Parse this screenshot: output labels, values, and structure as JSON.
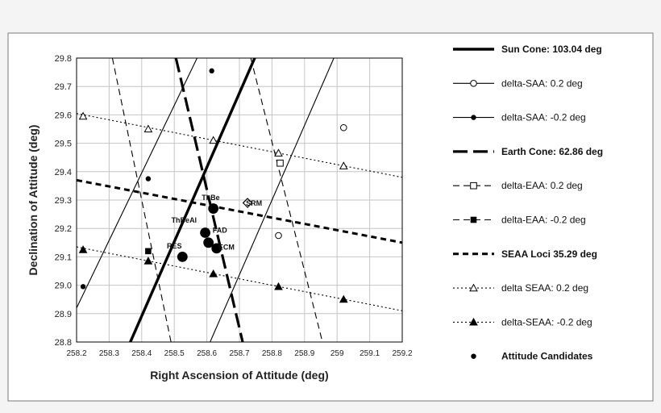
{
  "chart_data": {
    "type": "line",
    "xlabel": "Right Ascension of Attitude (deg)",
    "ylabel": "Declination of Attitude (deg)",
    "xlim": [
      258.2,
      259.2
    ],
    "ylim": [
      28.8,
      29.8
    ],
    "xticks": [
      "258.2",
      "258.3",
      "258.4",
      "258.5",
      "258.6",
      "258.7",
      "258.8",
      "258.9",
      "259",
      "259.1",
      "259.2"
    ],
    "yticks": [
      "28.8",
      "28.9",
      "29.0",
      "29.1",
      "29.2",
      "29.3",
      "29.4",
      "29.5",
      "29.6",
      "29.7",
      "29.8"
    ],
    "grid": true,
    "legend_position": "right",
    "series": [
      {
        "name": "Sun Cone: 103.04 deg",
        "style": "thick-solid",
        "marker": "none",
        "bold": true,
        "x": [
          258.365,
          258.747
        ],
        "y": [
          28.8,
          29.8
        ],
        "marker_x": [],
        "marker_y": []
      },
      {
        "name": "delta-SAA: 0.2 deg",
        "style": "thin-solid",
        "marker": "open-circle",
        "bold": false,
        "x": [
          258.61,
          258.99
        ],
        "y": [
          28.8,
          29.8
        ],
        "marker_x": [
          258.82,
          259.02
        ],
        "marker_y": [
          29.175,
          29.555
        ]
      },
      {
        "name": "delta-SAA: -0.2 deg",
        "style": "thin-solid",
        "marker": "filled-circle",
        "bold": false,
        "x": [
          258.2,
          258.57
        ],
        "y": [
          28.92,
          29.8
        ],
        "marker_x": [
          258.22,
          258.42,
          258.615
        ],
        "marker_y": [
          28.995,
          29.375,
          29.755
        ]
      },
      {
        "name": "Earth Cone: 62.86 deg",
        "style": "long-dash",
        "marker": "none",
        "bold": true,
        "x": [
          258.505,
          258.71
        ],
        "y": [
          29.8,
          28.8
        ],
        "marker_x": [],
        "marker_y": []
      },
      {
        "name": "delta-EAA: 0.2 deg",
        "style": "dash",
        "marker": "open-square",
        "bold": false,
        "x": [
          258.735,
          258.955
        ],
        "y": [
          29.8,
          28.8
        ],
        "marker_x": [
          258.825
        ],
        "marker_y": [
          29.43
        ]
      },
      {
        "name": "delta-EAA: -0.2 deg",
        "style": "dash",
        "marker": "filled-square",
        "bold": false,
        "x": [
          258.31,
          258.49
        ],
        "y": [
          29.8,
          28.8
        ],
        "marker_x": [
          258.42
        ],
        "marker_y": [
          29.12
        ]
      },
      {
        "name": "SEAA Loci 35.29 deg",
        "style": "thick-short-dash",
        "marker": "none",
        "bold": true,
        "x": [
          258.2,
          259.2
        ],
        "y": [
          29.37,
          29.15
        ],
        "marker_x": [],
        "marker_y": []
      },
      {
        "name": "delta SEAA: 0.2 deg",
        "style": "dot",
        "marker": "open-triangle",
        "bold": false,
        "x": [
          258.2,
          259.2
        ],
        "y": [
          29.605,
          29.38
        ],
        "marker_x": [
          258.22,
          258.42,
          258.62,
          258.82,
          259.02
        ],
        "marker_y": [
          29.595,
          29.55,
          29.51,
          29.465,
          29.42
        ]
      },
      {
        "name": "delta-SEAA: -0.2 deg",
        "style": "dot",
        "marker": "filled-triangle",
        "bold": false,
        "x": [
          258.2,
          259.2
        ],
        "y": [
          29.135,
          28.91
        ],
        "marker_x": [
          258.22,
          258.42,
          258.62,
          258.82,
          259.02
        ],
        "marker_y": [
          29.125,
          29.085,
          29.04,
          28.995,
          28.95
        ]
      },
      {
        "name": "Attitude Candidates",
        "style": "none",
        "marker": "big-filled-circle",
        "bold": true,
        "x": [],
        "y": [],
        "marker_x": [
          258.525,
          258.595,
          258.605,
          258.62,
          258.63
        ],
        "marker_y": [
          29.1,
          29.185,
          29.15,
          29.27,
          29.13
        ]
      }
    ],
    "annotations": [
      {
        "text": "ThBe",
        "x": 258.612,
        "y": 29.3
      },
      {
        "text": "ThBeAl",
        "x": 258.53,
        "y": 29.22
      },
      {
        "text": "FAD",
        "x": 258.64,
        "y": 29.185
      },
      {
        "text": "RES",
        "x": 258.5,
        "y": 29.13
      },
      {
        "text": "ECM",
        "x": 258.66,
        "y": 29.125
      },
      {
        "text": "SRM",
        "x": 258.745,
        "y": 29.28
      }
    ],
    "extra_points": [
      {
        "marker": "open-diamond",
        "x": 258.725,
        "y": 29.29
      }
    ]
  }
}
